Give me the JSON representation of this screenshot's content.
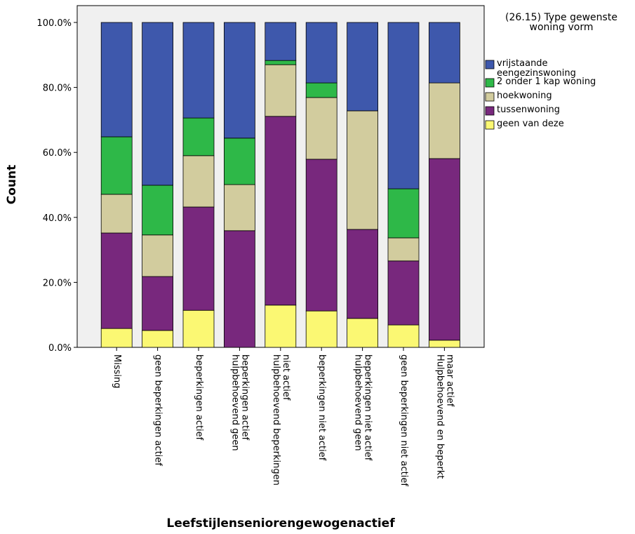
{
  "chart_data": {
    "type": "stacked_bar_percent",
    "y_label": "Count",
    "x_label": "Leefstijlenseniorengewogenactief",
    "legend_title": "(26.15) Type gewenste woning vorm",
    "legend": "right",
    "categories": [
      "Missing",
      "geen beperkingen actief",
      "beperkingen actief",
      "hulpbehoevend geen beperkingen actief",
      "hulpbehoevend  beperkingen niet actief",
      "beperkingen niet actief",
      "hulpbehoevend geen beperkingen niet actief",
      "geen beperkingen niet actief",
      "Hulpbehoevend en beperkt maar actief"
    ],
    "series": [
      {
        "name": "geen van deze",
        "color": "#fbf873",
        "values": [
          5.8,
          5.2,
          11.4,
          0,
          13.0,
          11.2,
          8.9,
          6.9,
          2.2
        ]
      },
      {
        "name": "tussenwoning",
        "color": "#78287d",
        "values": [
          29.4,
          16.6,
          31.8,
          35.9,
          58.1,
          46.7,
          27.4,
          19.7,
          55.9
        ]
      },
      {
        "name": "hoekwoning",
        "color": "#d2cc9e",
        "values": [
          11.9,
          12.8,
          15.8,
          14.2,
          15.9,
          19.0,
          36.5,
          7.1,
          23.3
        ]
      },
      {
        "name": "2 onder 1 kap woning",
        "color": "#2eb848",
        "values": [
          17.7,
          15.3,
          11.6,
          14.3,
          1.3,
          4.5,
          0,
          15.1,
          0
        ]
      },
      {
        "name": "vrijstaande eengezinswoning",
        "color": "#3e58ac",
        "values": [
          35.2,
          50.1,
          29.4,
          35.6,
          11.7,
          18.6,
          27.2,
          51.2,
          18.6
        ]
      }
    ],
    "ylim": [
      0,
      100
    ],
    "yticks": [
      {
        "value": 0,
        "label": "0.0%"
      },
      {
        "value": 20,
        "label": "20.0%"
      },
      {
        "value": 40,
        "label": "40.0%"
      },
      {
        "value": 60,
        "label": "60.0%"
      },
      {
        "value": 80,
        "label": "80.0%"
      },
      {
        "value": 100,
        "label": "100.0%"
      }
    ],
    "background": "#f0f0f0"
  }
}
